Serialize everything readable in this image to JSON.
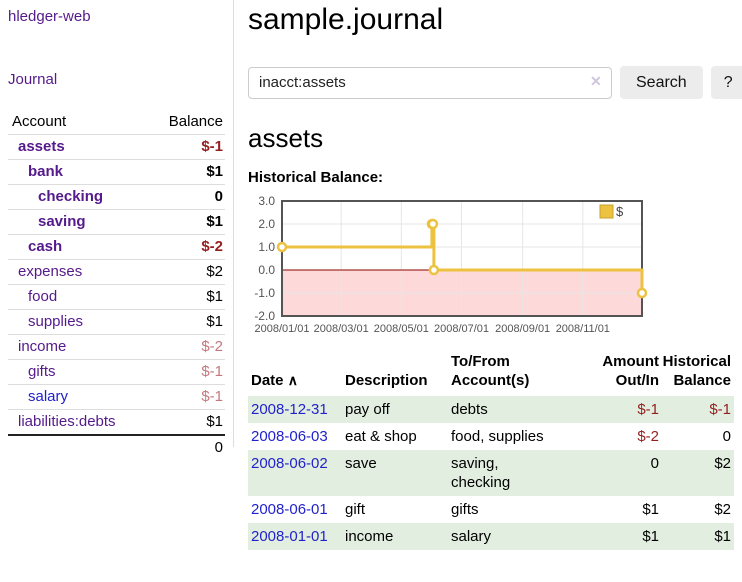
{
  "app": {
    "title": "hledger-web",
    "nav_journal": "Journal"
  },
  "sidebar": {
    "headers": {
      "account": "Account",
      "balance": "Balance"
    },
    "accounts": [
      {
        "name": "assets",
        "balance": "$-1"
      },
      {
        "name": "bank",
        "balance": "$1"
      },
      {
        "name": "checking",
        "balance": "0"
      },
      {
        "name": "saving",
        "balance": "$1"
      },
      {
        "name": "cash",
        "balance": "$-2"
      },
      {
        "name": "expenses",
        "balance": "$2"
      },
      {
        "name": "food",
        "balance": "$1"
      },
      {
        "name": "supplies",
        "balance": "$1"
      },
      {
        "name": "income",
        "balance": "$-2"
      },
      {
        "name": "gifts",
        "balance": "$-1"
      },
      {
        "name": "salary",
        "balance": "$-1"
      },
      {
        "name": "liabilities:debts",
        "balance": "$1"
      }
    ],
    "total": "0"
  },
  "page": {
    "title": "sample.journal"
  },
  "search": {
    "value": "inacct:assets",
    "clear_icon": "✕",
    "search_button": "Search",
    "help_button": "?"
  },
  "account": {
    "heading": "assets",
    "chart_title": "Historical Balance:"
  },
  "chart_data": {
    "type": "line",
    "step": true,
    "title": "Historical Balance",
    "series": [
      {
        "name": "$",
        "color": "#edc240",
        "points": [
          [
            "2008-01-01",
            1
          ],
          [
            "2008-06-01",
            2
          ],
          [
            "2008-06-02",
            2
          ],
          [
            "2008-06-03",
            0
          ],
          [
            "2008-12-31",
            -1
          ]
        ]
      }
    ],
    "xlim": [
      "2008-01-01",
      "2008-12-31"
    ],
    "ylim": [
      -2,
      3
    ],
    "y_ticks": [
      3,
      2,
      1,
      0,
      -1,
      -2
    ],
    "y_tick_labels": [
      "3.0",
      "2.0",
      "1.0",
      "0.0",
      "-1.0",
      "-2.0"
    ],
    "x_ticks": [
      "2008/01/01",
      "2008/03/01",
      "2008/05/01",
      "2008/07/01",
      "2008/09/01",
      "2008/11/01"
    ],
    "legend_position": "top-right",
    "grid": true,
    "colors": {
      "negative_fill": "#fdd9d9",
      "zero_line": "#8b0000",
      "grid": "#e6e6e6",
      "border": "#545454",
      "tick_text": "#545454",
      "marker_fill": "#ffffff",
      "legend_box_border": "#c7a42c"
    }
  },
  "register": {
    "headers": {
      "date": "Date",
      "sort_indicator": "∧",
      "description": "Description",
      "accounts": "To/From\nAccount(s)",
      "amount": "Amount\nOut/In",
      "balance": "Historical\nBalance"
    },
    "rows": [
      {
        "date": "2008-12-31",
        "description": "pay off",
        "accounts": "debts",
        "amount": "$-1",
        "balance": "$-1"
      },
      {
        "date": "2008-06-03",
        "description": "eat & shop",
        "accounts": "food, supplies",
        "amount": "$-2",
        "balance": "0"
      },
      {
        "date": "2008-06-02",
        "description": "save",
        "accounts": "saving,\nchecking",
        "amount": "0",
        "balance": "$2"
      },
      {
        "date": "2008-06-01",
        "description": "gift",
        "accounts": "gifts",
        "amount": "$1",
        "balance": "$2"
      },
      {
        "date": "2008-01-01",
        "description": "income",
        "accounts": "salary",
        "amount": "$1",
        "balance": "$1"
      }
    ]
  },
  "colors": {
    "link_purple": "#551a8b",
    "link_blue": "#2222cc",
    "negative_strong": "#941f1f",
    "negative_muted": "#c4787e",
    "row_green": "#e2efe0",
    "accent_gold": "#edc240"
  }
}
